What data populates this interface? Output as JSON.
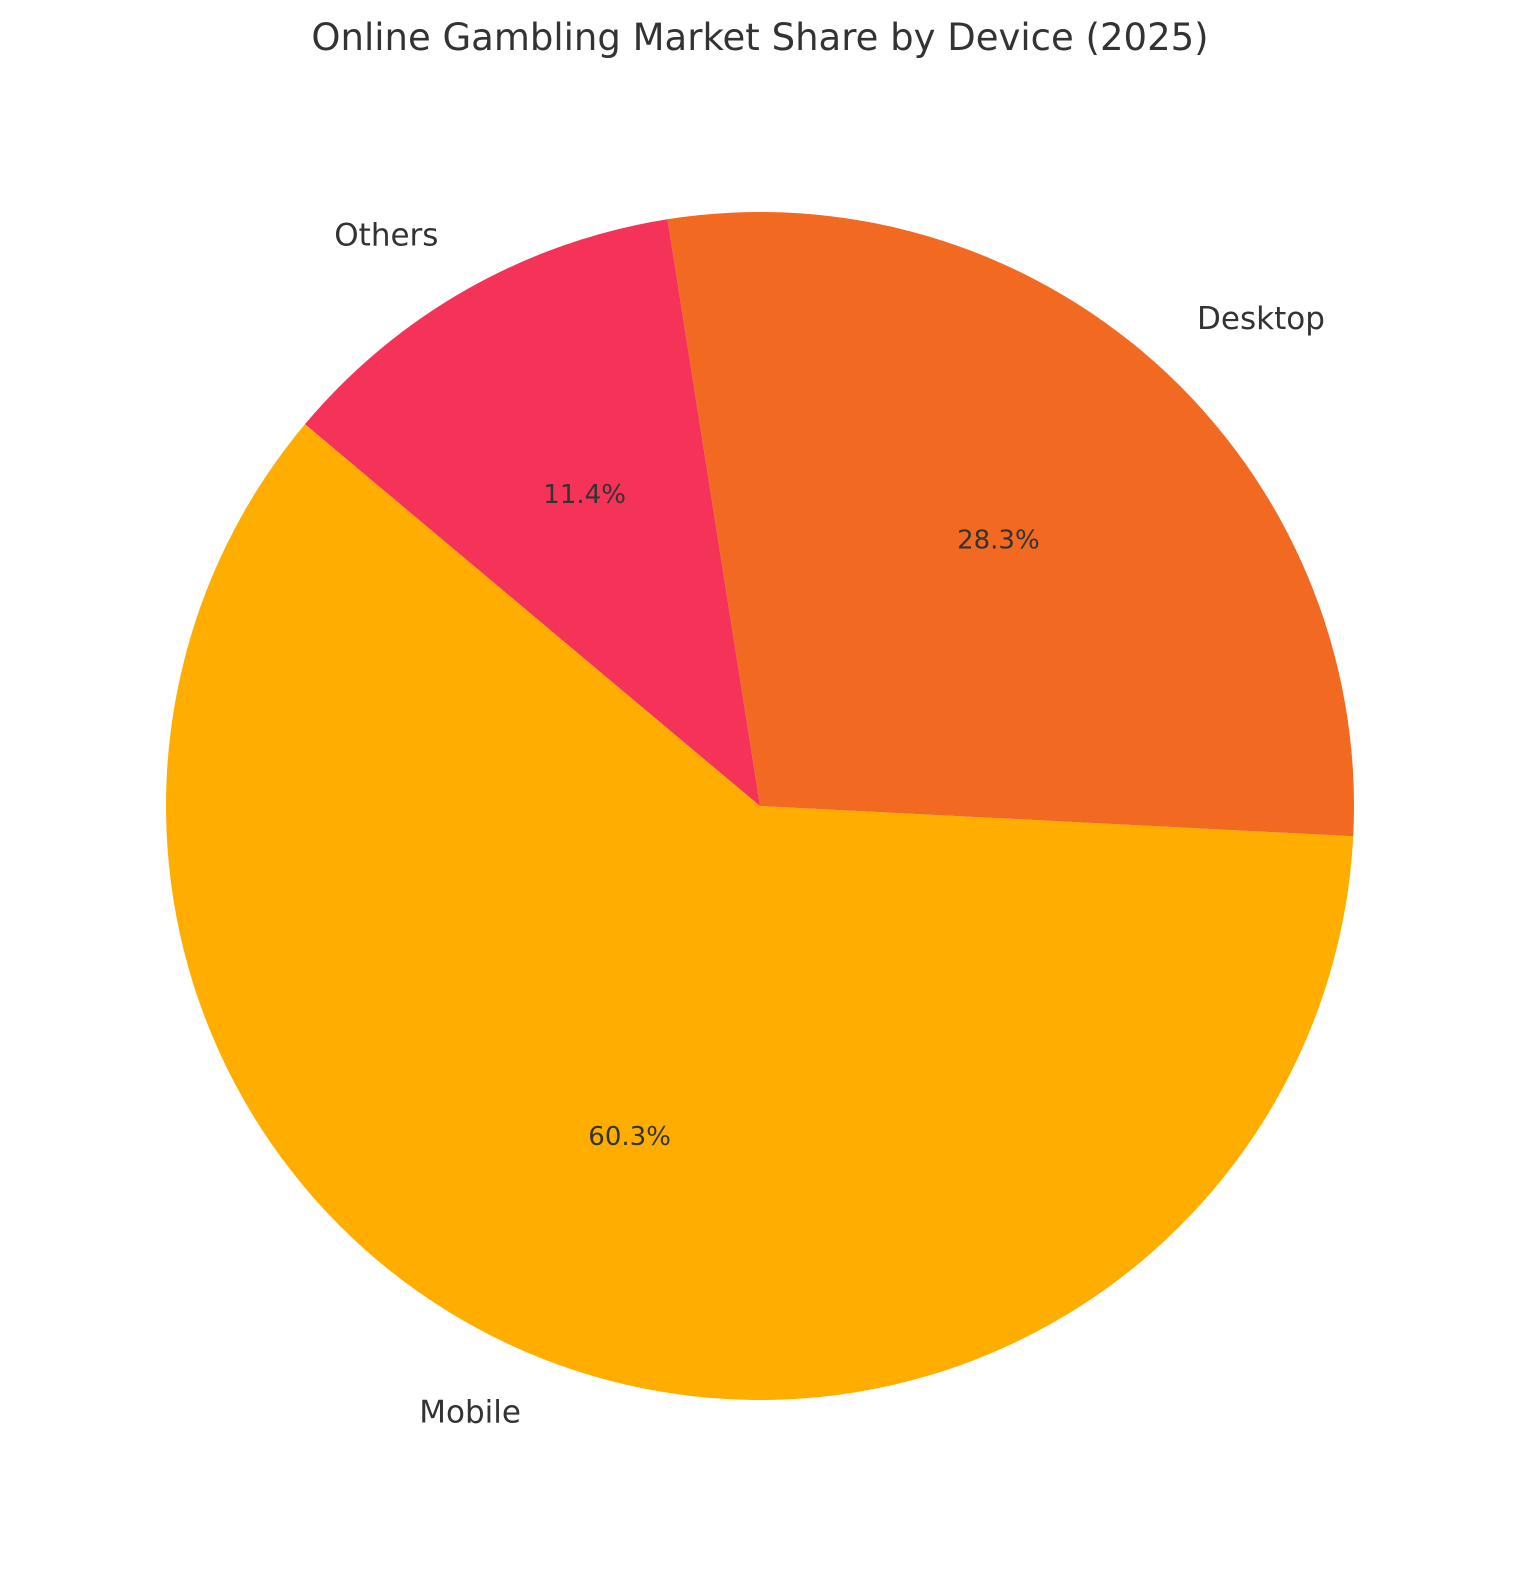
{
  "chart_data": {
    "type": "pie",
    "title": "Online Gambling Market Share by Device (2025)",
    "start_angle_deg": 140,
    "direction": "counterclockwise",
    "slices": [
      {
        "label": "Mobile",
        "value": 60.3,
        "pct_label": "60.3%",
        "color": "#FFAE00"
      },
      {
        "label": "Desktop",
        "value": 28.3,
        "pct_label": "28.3%",
        "color": "#F26A22"
      },
      {
        "label": "Others",
        "value": 11.4,
        "pct_label": "11.4%",
        "color": "#F53257"
      }
    ]
  }
}
